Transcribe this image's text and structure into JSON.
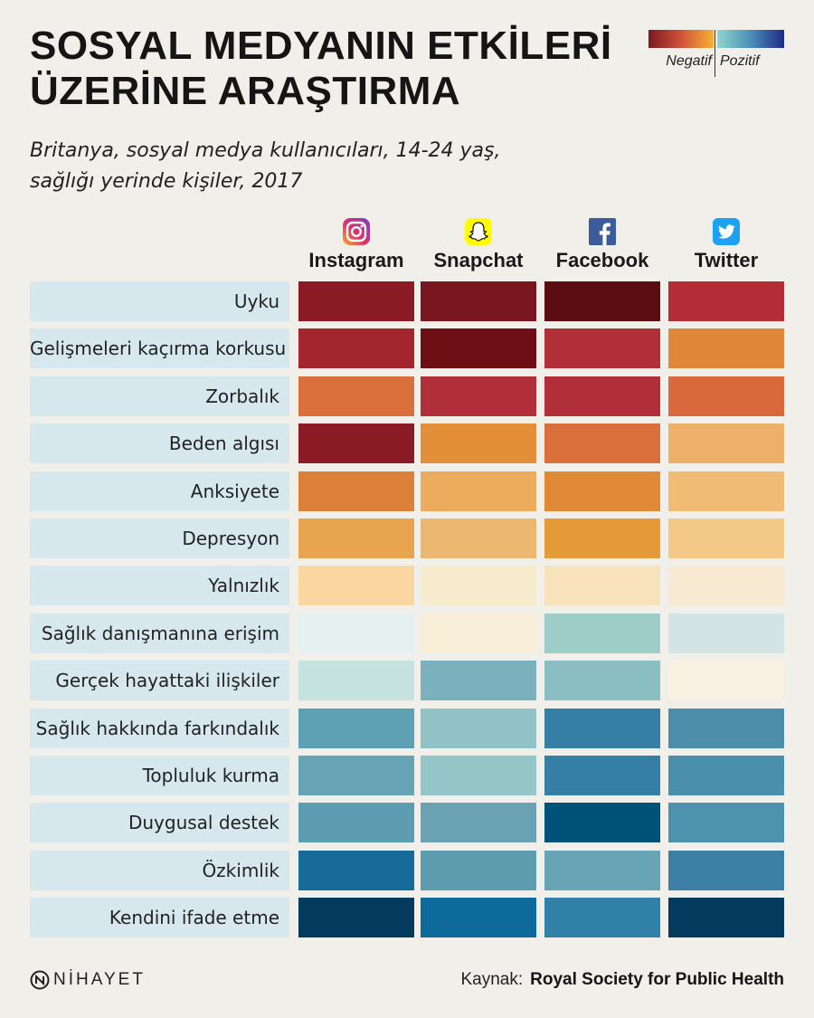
{
  "header": {
    "title_line1": "SOSYAL MEDYANIN ETKİLERİ",
    "title_line2": "ÜZERİNE ARAŞTIRMA",
    "subtitle_line1": "Britanya, sosyal medya kullanıcıları, 14-24 yaş,",
    "subtitle_line2": "sağlığı yerinde kişiler, 2017"
  },
  "legend": {
    "negative_label": "Negatif",
    "positive_label": "Pozitif",
    "negative_colors": [
      "#7a1a22",
      "#d0513a",
      "#f6b233"
    ],
    "positive_colors": [
      "#8fd6cc",
      "#4b8fb8",
      "#1f2a86"
    ]
  },
  "chart_data": {
    "type": "heatmap",
    "columns": [
      {
        "name": "Instagram",
        "icon": "instagram-icon"
      },
      {
        "name": "Snapchat",
        "icon": "snapchat-icon"
      },
      {
        "name": "Facebook",
        "icon": "facebook-icon"
      },
      {
        "name": "Twitter",
        "icon": "twitter-icon"
      }
    ],
    "rows": [
      "Uyku",
      "Gelişmeleri kaçırma korkusu",
      "Zorbalık",
      "Beden algısı",
      "Anksiyete",
      "Depresyon",
      "Yalnızlık",
      "Sağlık danışmanına erişim",
      "Gerçek hayattaki ilişkiler",
      "Sağlık hakkında farkındalık",
      "Topluluk kurma",
      "Duygusal destek",
      "Özkimlik",
      "Kendini ifade etme"
    ],
    "cell_colors": [
      [
        "#8b1c26",
        "#7a1620",
        "#5c0d12",
        "#b32d36"
      ],
      [
        "#a3252e",
        "#6d0f14",
        "#b12f39",
        "#e0883a"
      ],
      [
        "#d9703c",
        "#b12f39",
        "#b12f39",
        "#d7693b"
      ],
      [
        "#8b1c26",
        "#e38f3a",
        "#d9703c",
        "#ecb068"
      ],
      [
        "#dc7f39",
        "#ebac5e",
        "#e08a37",
        "#f0bb75"
      ],
      [
        "#e9a44f",
        "#ecb771",
        "#e49a37",
        "#f4c887"
      ],
      [
        "#fad7a0",
        "#f8eccf",
        "#f7e2bb",
        "#f8ead2"
      ],
      [
        "#e5f0f1",
        "#f9eed8",
        "#9ecdc8",
        "#d2e5e4"
      ],
      [
        "#c6e2df",
        "#7ab1bd",
        "#8bbec3",
        "#f8f0e1"
      ],
      [
        "#5ea1b5",
        "#90c2c6",
        "#357fa5",
        "#4d8fab"
      ],
      [
        "#66a3b4",
        "#94c5c7",
        "#357fa6",
        "#4a8fab"
      ],
      [
        "#5d9db1",
        "#6aa2b3",
        "#005378",
        "#4e93ad"
      ],
      [
        "#166b98",
        "#5e9cb0",
        "#66a4b6",
        "#3e7fa5"
      ],
      [
        "#053a5f",
        "#0f6a9c",
        "#3080a8",
        "#043a5e"
      ]
    ]
  },
  "footer": {
    "logo_text": "NİHAYET",
    "source_label": "Kaynak:",
    "source_value": "Royal Society for Public Health"
  }
}
